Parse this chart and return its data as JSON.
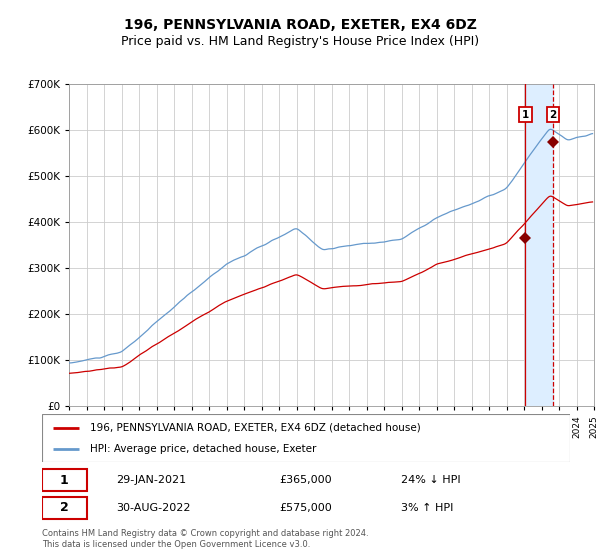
{
  "title": "196, PENNSYLVANIA ROAD, EXETER, EX4 6DZ",
  "subtitle": "Price paid vs. HM Land Registry's House Price Index (HPI)",
  "title_fontsize": 10,
  "subtitle_fontsize": 9,
  "hpi_color": "#6699cc",
  "price_color": "#cc0000",
  "background_color": "#ffffff",
  "plot_bg_color": "#ffffff",
  "grid_color": "#cccccc",
  "ylim": [
    0,
    700000
  ],
  "yticks": [
    0,
    100000,
    200000,
    300000,
    400000,
    500000,
    600000,
    700000
  ],
  "ytick_labels": [
    "£0",
    "£100K",
    "£200K",
    "£300K",
    "£400K",
    "£500K",
    "£600K",
    "£700K"
  ],
  "year_start": 1995,
  "year_end": 2025,
  "legend_label_red": "196, PENNSYLVANIA ROAD, EXETER, EX4 6DZ (detached house)",
  "legend_label_blue": "HPI: Average price, detached house, Exeter",
  "sale1_date": "29-JAN-2021",
  "sale1_price": "£365,000",
  "sale1_hpi": "24% ↓ HPI",
  "sale1_year": 2021.08,
  "sale1_value": 365000,
  "sale2_date": "30-AUG-2022",
  "sale2_price": "£575,000",
  "sale2_hpi": "3% ↑ HPI",
  "sale2_year": 2022.66,
  "sale2_value": 575000,
  "footer": "Contains HM Land Registry data © Crown copyright and database right 2024.\nThis data is licensed under the Open Government Licence v3.0.",
  "highlight_color": "#ddeeff",
  "vline_color": "#cc0000"
}
